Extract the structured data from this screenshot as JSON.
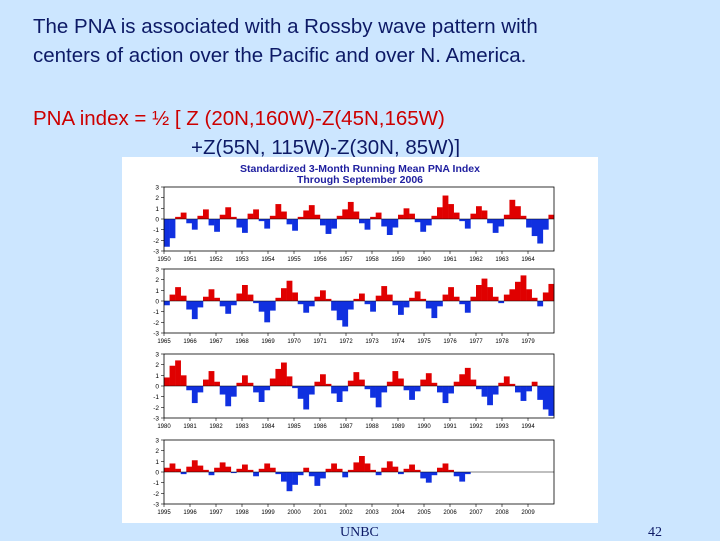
{
  "slide": {
    "line1": "The PNA is associated with a  Rossby wave pattern with",
    "line2": "centers of action over the Pacific and over N. America.",
    "formula_label": "PNA index",
    "formula_rest1": " = ½ [ Z (20N,160W)-Z(45N,165W)",
    "formula_rest2": "+Z(55N,  115W)-Z(30N, 85W)]",
    "footer_center": "UNBC",
    "footer_page": "42"
  },
  "colors": {
    "positive": "#e00000",
    "negative": "#1030e0",
    "title": "#2020a0"
  },
  "chart_data": {
    "type": "area",
    "title": "Standardized 3-Month Running Mean PNA Index",
    "subtitle": "Through September 2006",
    "ylim": [
      -3,
      3
    ],
    "yticks": [
      "3",
      "2",
      "1",
      "0",
      "-1",
      "-2",
      "-3"
    ],
    "panels": [
      {
        "xticks": [
          "1950",
          "1951",
          "1952",
          "1953",
          "1954",
          "1955",
          "1956",
          "1957",
          "1958",
          "1959",
          "1960",
          "1961",
          "1962",
          "1963",
          "1964"
        ],
        "values": [
          -2.6,
          -1.8,
          0.2,
          0.6,
          -0.4,
          -1.0,
          0.3,
          0.9,
          -0.6,
          -1.2,
          0.4,
          1.1,
          0.2,
          -0.8,
          -1.3,
          0.5,
          0.9,
          -0.2,
          -0.9,
          0.3,
          1.4,
          0.7,
          -0.5,
          -1.1,
          0.2,
          0.8,
          1.3,
          0.4,
          -0.6,
          -1.4,
          -0.9,
          0.3,
          0.9,
          1.6,
          0.7,
          -0.4,
          -1.0,
          0.2,
          0.6,
          -0.7,
          -1.5,
          -0.8,
          0.4,
          1.0,
          0.5,
          -0.3,
          -1.2,
          -0.6,
          0.3,
          1.1,
          2.2,
          1.4,
          0.6,
          -0.2,
          -0.9,
          0.5,
          1.2,
          0.8,
          -0.4,
          -1.3,
          -0.7,
          0.4,
          1.8,
          1.2,
          0.3,
          -0.8,
          -1.6,
          -2.3,
          -1.0,
          0.4
        ]
      },
      {
        "xticks": [
          "1965",
          "1966",
          "1967",
          "1968",
          "1969",
          "1970",
          "1971",
          "1972",
          "1973",
          "1974",
          "1975",
          "1976",
          "1977",
          "1978",
          "1979"
        ],
        "values": [
          -0.4,
          0.6,
          1.3,
          0.5,
          -0.8,
          -1.7,
          -0.6,
          0.4,
          1.1,
          0.3,
          -0.5,
          -1.2,
          -0.4,
          0.7,
          1.5,
          0.6,
          -0.2,
          -1.0,
          -2.0,
          -0.9,
          0.3,
          1.2,
          1.9,
          0.8,
          -0.3,
          -1.1,
          -0.5,
          0.4,
          1.0,
          0.2,
          -0.9,
          -1.8,
          -2.4,
          -0.8,
          0.2,
          0.7,
          -0.3,
          -1.0,
          0.5,
          1.4,
          0.6,
          -0.4,
          -1.3,
          -0.6,
          0.3,
          0.9,
          0.2,
          -0.7,
          -1.6,
          -0.5,
          0.6,
          1.3,
          0.4,
          -0.3,
          -1.1,
          0.4,
          1.5,
          2.1,
          1.3,
          0.4,
          -0.2,
          0.6,
          1.1,
          1.8,
          2.4,
          1.1,
          0.3,
          -0.5,
          0.8,
          1.6
        ]
      },
      {
        "xticks": [
          "1980",
          "1981",
          "1982",
          "1983",
          "1984",
          "1985",
          "1986",
          "1987",
          "1988",
          "1989",
          "1990",
          "1991",
          "1992",
          "1993",
          "1994"
        ],
        "values": [
          0.8,
          1.9,
          2.4,
          1.0,
          -0.4,
          -1.6,
          -0.6,
          0.6,
          1.4,
          0.4,
          -0.8,
          -1.9,
          -1.0,
          0.3,
          1.0,
          0.3,
          -0.6,
          -1.5,
          -0.4,
          0.7,
          1.6,
          2.2,
          0.9,
          -0.2,
          -1.2,
          -2.2,
          -0.8,
          0.4,
          1.1,
          0.2,
          -0.7,
          -1.5,
          -0.5,
          0.5,
          1.3,
          0.6,
          -0.3,
          -1.1,
          -2.0,
          -0.6,
          0.4,
          1.4,
          0.7,
          -0.4,
          -1.3,
          -0.5,
          0.6,
          1.2,
          0.3,
          -0.6,
          -1.6,
          -0.7,
          0.4,
          1.1,
          1.7,
          0.6,
          -0.3,
          -1.0,
          -1.8,
          -0.8,
          0.3,
          0.9,
          0.2,
          -0.6,
          -1.4,
          -0.5,
          0.4,
          -1.3,
          -2.2,
          -2.8
        ]
      },
      {
        "xticks": [
          "1995",
          "1996",
          "1997",
          "1998",
          "1999",
          "2000",
          "2001",
          "2002",
          "2003",
          "2004",
          "2005",
          "2006",
          "2007",
          "2008",
          "2009"
        ],
        "values": [
          0.4,
          0.8,
          0.3,
          -0.2,
          0.5,
          1.1,
          0.6,
          0.2,
          -0.3,
          0.4,
          0.9,
          0.5,
          -0.1,
          0.3,
          0.7,
          0.2,
          -0.4,
          0.3,
          0.8,
          0.4,
          -0.2,
          -0.9,
          -1.8,
          -1.2,
          -0.3,
          0.4,
          -0.4,
          -1.3,
          -0.6,
          0.3,
          0.8,
          0.3,
          -0.5,
          0.2,
          0.9,
          1.5,
          0.8,
          0.2,
          -0.3,
          0.4,
          1.0,
          0.5,
          -0.2,
          0.3,
          0.7,
          0.2,
          -0.6,
          -1.0,
          -0.3,
          0.4,
          0.8,
          0.2,
          -0.4,
          -0.9,
          -0.2,
          null,
          null,
          null,
          null,
          null,
          null,
          null,
          null,
          null,
          null,
          null,
          null,
          null,
          null,
          null
        ]
      }
    ]
  }
}
